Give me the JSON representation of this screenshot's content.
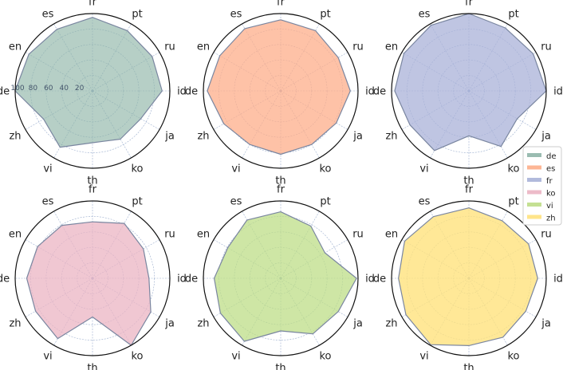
{
  "chart_data": {
    "type": "radar",
    "categories": [
      "fr",
      "pt",
      "ru",
      "id",
      "ja",
      "ko",
      "th",
      "vi",
      "zh",
      "de",
      "en",
      "es"
    ],
    "r_range": [
      0,
      100
    ],
    "r_ticks": [
      20,
      40,
      60,
      80,
      100
    ],
    "r_tick_labels": [
      "20",
      "40",
      "60",
      "80",
      "100"
    ],
    "grid": true,
    "legend": {
      "placement": "right",
      "entries": [
        "de",
        "es",
        "fr",
        "ko",
        "vi",
        "zh"
      ]
    },
    "panels": [
      {
        "name": "de",
        "color": "#8fb5a8",
        "fill_opacity": 0.65,
        "values": [
          95,
          90,
          89,
          90,
          72,
          72,
          67,
          84,
          73,
          100,
          95,
          92
        ]
      },
      {
        "name": "es",
        "color": "#fdae8a",
        "fill_opacity": 0.75,
        "values": [
          92,
          90,
          86,
          90,
          83,
          80,
          82,
          80,
          85,
          95,
          91,
          93
        ]
      },
      {
        "name": "fr",
        "color": "#a9b2d8",
        "fill_opacity": 0.75,
        "values": [
          100,
          94,
          96,
          100,
          72,
          83,
          58,
          89,
          88,
          96,
          97,
          98
        ]
      },
      {
        "name": "ko",
        "color": "#ebb4c3",
        "fill_opacity": 0.75,
        "values": [
          73,
          82,
          76,
          73,
          87,
          100,
          50,
          90,
          85,
          85,
          82,
          79
        ]
      },
      {
        "name": "vi",
        "color": "#bedd87",
        "fill_opacity": 0.75,
        "values": [
          86,
          78,
          66,
          98,
          86,
          83,
          68,
          94,
          90,
          86,
          79,
          87
        ]
      },
      {
        "name": "zh",
        "color": "#ffe27d",
        "fill_opacity": 0.8,
        "values": [
          91,
          86,
          89,
          89,
          85,
          88,
          87,
          99,
          94,
          91,
          96,
          92
        ]
      }
    ]
  }
}
